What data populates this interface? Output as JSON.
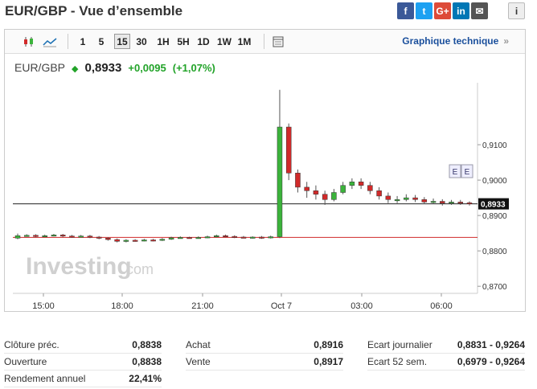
{
  "header": {
    "title": "EUR/GBP - Vue d’ensemble"
  },
  "share": [
    {
      "name": "facebook-icon",
      "glyph": "f",
      "cls": "fb"
    },
    {
      "name": "twitter-icon",
      "glyph": "t",
      "cls": "tw"
    },
    {
      "name": "google-plus-icon",
      "glyph": "G+",
      "cls": "gp"
    },
    {
      "name": "linkedin-icon",
      "glyph": "in",
      "cls": "li"
    },
    {
      "name": "email-icon",
      "glyph": "✉",
      "cls": "em"
    }
  ],
  "info_icon": "i",
  "toolbar": {
    "chart_types": [
      "candlestick-icon",
      "area-chart-icon"
    ],
    "timeframes": [
      "1",
      "5",
      "15",
      "30",
      "1H",
      "5H",
      "1D",
      "1W",
      "1M"
    ],
    "selected_timeframe": "15",
    "settings_icon": "window-icon",
    "technical_link": "Graphique technique",
    "chevron": "»"
  },
  "quote": {
    "name": "EUR/GBP",
    "direction_icon": "up-arrow-icon",
    "last": "0,8933",
    "change": "+0,0095",
    "change_pct": "(+1,07%)",
    "up_color": "#22a329"
  },
  "watermark": {
    "brand": "Investing",
    "suffix": ".com"
  },
  "event_markers": [
    "E",
    "E"
  ],
  "chart_data": {
    "type": "candlestick",
    "x_ticks": [
      "15:00",
      "18:00",
      "21:00",
      "Oct 7",
      "03:00",
      "06:00"
    ],
    "y_ticks": [
      "0,9100",
      "0,9000",
      "0,8900",
      "0,8800",
      "0,8700"
    ],
    "ylim": [
      0.868,
      0.9275
    ],
    "last_price_label": "0,8933",
    "last_price": 0.8933,
    "prev_close": 0.8838,
    "candles": [
      [
        0.8836,
        0.8843,
        0.8849,
        0.8833
      ],
      [
        0.8843,
        0.8844,
        0.8847,
        0.884
      ],
      [
        0.8844,
        0.8842,
        0.8847,
        0.8839
      ],
      [
        0.8842,
        0.8843,
        0.8846,
        0.884
      ],
      [
        0.8843,
        0.8845,
        0.8848,
        0.8841
      ],
      [
        0.8845,
        0.8842,
        0.8848,
        0.8839
      ],
      [
        0.8842,
        0.884,
        0.8845,
        0.8837
      ],
      [
        0.884,
        0.8842,
        0.8845,
        0.8838
      ],
      [
        0.8842,
        0.8839,
        0.8845,
        0.8836
      ],
      [
        0.8839,
        0.8836,
        0.8842,
        0.8833
      ],
      [
        0.8836,
        0.8832,
        0.8839,
        0.8829
      ],
      [
        0.8832,
        0.8827,
        0.8835,
        0.8824
      ],
      [
        0.8827,
        0.883,
        0.8833,
        0.8824
      ],
      [
        0.883,
        0.8829,
        0.8833,
        0.8826
      ],
      [
        0.8829,
        0.8831,
        0.8834,
        0.8827
      ],
      [
        0.8831,
        0.883,
        0.8834,
        0.8827
      ],
      [
        0.883,
        0.8833,
        0.8836,
        0.8828
      ],
      [
        0.8833,
        0.8837,
        0.884,
        0.8831
      ],
      [
        0.8837,
        0.8838,
        0.8841,
        0.8835
      ],
      [
        0.8838,
        0.8837,
        0.884,
        0.8835
      ],
      [
        0.8837,
        0.8838,
        0.8841,
        0.8835
      ],
      [
        0.8838,
        0.884,
        0.8843,
        0.8836
      ],
      [
        0.884,
        0.8843,
        0.8846,
        0.8838
      ],
      [
        0.8843,
        0.8841,
        0.8846,
        0.8838
      ],
      [
        0.8841,
        0.8839,
        0.8844,
        0.8836
      ],
      [
        0.8839,
        0.8838,
        0.8842,
        0.8836
      ],
      [
        0.8838,
        0.8839,
        0.8841,
        0.8835
      ],
      [
        0.8839,
        0.8837,
        0.8842,
        0.8834
      ],
      [
        0.8837,
        0.884,
        0.8843,
        0.8835
      ],
      [
        0.884,
        0.915,
        0.9255,
        0.8836
      ],
      [
        0.915,
        0.902,
        0.916,
        0.9
      ],
      [
        0.902,
        0.898,
        0.903,
        0.8965
      ],
      [
        0.898,
        0.897,
        0.8995,
        0.895
      ],
      [
        0.897,
        0.896,
        0.8985,
        0.8945
      ],
      [
        0.896,
        0.8945,
        0.897,
        0.893
      ],
      [
        0.8945,
        0.8965,
        0.8975,
        0.894
      ],
      [
        0.8965,
        0.8985,
        0.8995,
        0.896
      ],
      [
        0.8985,
        0.8995,
        0.9005,
        0.8975
      ],
      [
        0.8995,
        0.8985,
        0.9005,
        0.8975
      ],
      [
        0.8985,
        0.897,
        0.8995,
        0.896
      ],
      [
        0.897,
        0.8955,
        0.898,
        0.8945
      ],
      [
        0.8955,
        0.8945,
        0.8965,
        0.8935
      ],
      [
        0.8945,
        0.8945,
        0.8955,
        0.8935
      ],
      [
        0.8945,
        0.895,
        0.896,
        0.894
      ],
      [
        0.895,
        0.8945,
        0.8958,
        0.8938
      ],
      [
        0.8945,
        0.8938,
        0.8952,
        0.8932
      ],
      [
        0.8938,
        0.894,
        0.8948,
        0.8932
      ],
      [
        0.894,
        0.8935,
        0.8946,
        0.8928
      ],
      [
        0.8935,
        0.8938,
        0.8944,
        0.893
      ],
      [
        0.8938,
        0.8936,
        0.8944,
        0.893
      ],
      [
        0.8936,
        0.8933,
        0.894,
        0.8928
      ]
    ],
    "up_color": "#3bb33b",
    "down_color": "#d12a2a"
  },
  "stats": {
    "col1": [
      {
        "label": "Clôture préc.",
        "value": "0,8838"
      },
      {
        "label": "Ouverture",
        "value": "0,8838"
      },
      {
        "label": "Rendement annuel",
        "value": "22,41%"
      }
    ],
    "col2": [
      {
        "label": "Achat",
        "value": "0,8916"
      },
      {
        "label": "Vente",
        "value": "0,8917"
      }
    ],
    "col3": [
      {
        "label": "Ecart journalier",
        "value": "0,8831 - 0,9264"
      },
      {
        "label": "Ecart 52 sem.",
        "value": "0,6979 - 0,9264"
      }
    ]
  }
}
